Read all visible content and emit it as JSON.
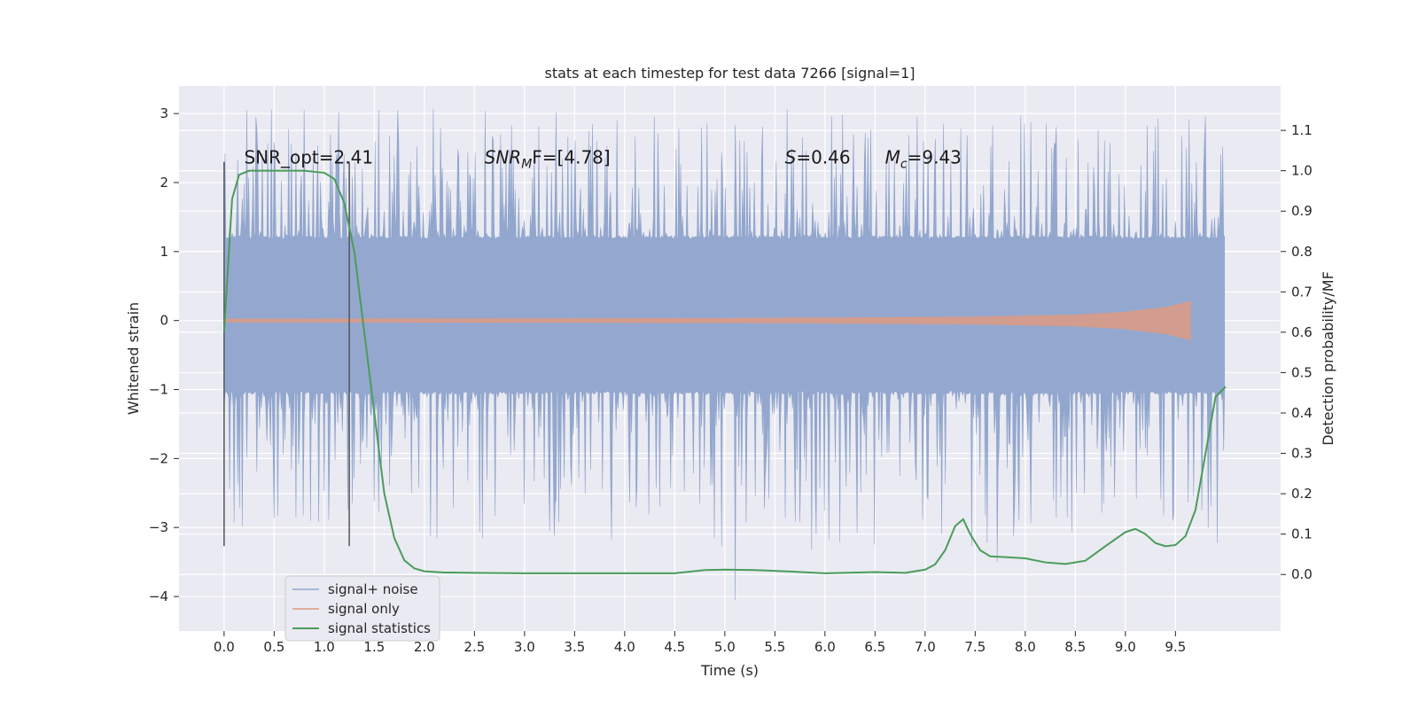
{
  "chart_data": {
    "type": "line",
    "title": "stats at each timestep for test data 7266 [signal=1]",
    "xlabel": "Time (s)",
    "ylabel": "Whitened strain",
    "ylabel_right": "Detection probability/MF",
    "xlim": [
      -0.45,
      10.55
    ],
    "ylim": [
      -4.5,
      3.4
    ],
    "ylim_right": [
      -0.14,
      1.21
    ],
    "x_ticks": [
      "0.0",
      "0.5",
      "1.0",
      "1.5",
      "2.0",
      "2.5",
      "3.0",
      "3.5",
      "4.0",
      "4.5",
      "5.0",
      "5.5",
      "6.0",
      "6.5",
      "7.0",
      "7.5",
      "8.0",
      "8.5",
      "9.0",
      "9.5"
    ],
    "x_tick_values": [
      0.0,
      0.5,
      1.0,
      1.5,
      2.0,
      2.5,
      3.0,
      3.5,
      4.0,
      4.5,
      5.0,
      5.5,
      6.0,
      6.5,
      7.0,
      7.5,
      8.0,
      8.5,
      9.0,
      9.5
    ],
    "y_ticks": [
      "3",
      "2",
      "1",
      "0",
      "−1",
      "−2",
      "−3",
      "−4"
    ],
    "y_tick_values": [
      3,
      2,
      1,
      0,
      -1,
      -2,
      -3,
      -4
    ],
    "y_right_ticks": [
      "1.1",
      "1.0",
      "0.9",
      "0.8",
      "0.7",
      "0.6",
      "0.5",
      "0.4",
      "0.3",
      "0.2",
      "0.1",
      "0.0"
    ],
    "y_right_tick_values": [
      1.1,
      1.0,
      0.9,
      0.8,
      0.7,
      0.6,
      0.5,
      0.4,
      0.3,
      0.2,
      0.1,
      0.0
    ],
    "grid": true,
    "legend_position": "lower-left",
    "annotations": [
      {
        "text": "SNR_opt=2.41"
      },
      {
        "prefix": "SNR",
        "sub": "M",
        "suffix": "F=[4.78]"
      },
      {
        "prefix": "S",
        "sub": "",
        "suffix": "=0.46"
      },
      {
        "prefix": "M",
        "sub": "c",
        "suffix": "=9.43"
      }
    ],
    "vlines": [
      0.0,
      1.25
    ],
    "vline_range": [
      -3.27,
      2.3
    ],
    "series": [
      {
        "name": "signal+ noise",
        "color": "#8fa4cc",
        "x_range": [
          0.0,
          9.99
        ],
        "band_inner": [
          -1.02,
          1.18
        ],
        "spike_upper_max": 3.05,
        "spike_lower_min": -4.05
      },
      {
        "name": "signal only",
        "color": "#dd9a82",
        "x_range": [
          0.0,
          9.65
        ],
        "envelope": [
          [
            0.0,
            0.02
          ],
          [
            5.0,
            0.03
          ],
          [
            7.5,
            0.05
          ],
          [
            8.5,
            0.08
          ],
          [
            9.0,
            0.12
          ],
          [
            9.4,
            0.19
          ],
          [
            9.6,
            0.26
          ],
          [
            9.65,
            0.28
          ]
        ]
      },
      {
        "name": "signal statistics",
        "color": "#4a9c5a",
        "axis": "right",
        "x": [
          0.0,
          0.08,
          0.15,
          0.25,
          0.4,
          0.6,
          0.8,
          1.0,
          1.1,
          1.2,
          1.3,
          1.4,
          1.5,
          1.6,
          1.7,
          1.8,
          1.9,
          2.0,
          2.2,
          2.5,
          3.0,
          3.5,
          4.0,
          4.5,
          4.8,
          5.0,
          5.3,
          5.6,
          6.0,
          6.5,
          6.8,
          7.0,
          7.1,
          7.2,
          7.3,
          7.38,
          7.45,
          7.55,
          7.65,
          7.8,
          8.0,
          8.2,
          8.4,
          8.6,
          8.8,
          9.0,
          9.1,
          9.2,
          9.3,
          9.4,
          9.5,
          9.6,
          9.7,
          9.8,
          9.9,
          10.0
        ],
        "values": [
          0.6,
          0.93,
          0.99,
          1.0,
          1.0,
          1.0,
          1.0,
          0.995,
          0.98,
          0.92,
          0.8,
          0.6,
          0.4,
          0.2,
          0.09,
          0.035,
          0.015,
          0.008,
          0.005,
          0.004,
          0.003,
          0.003,
          0.003,
          0.003,
          0.011,
          0.012,
          0.011,
          0.008,
          0.003,
          0.006,
          0.004,
          0.012,
          0.025,
          0.06,
          0.12,
          0.137,
          0.1,
          0.06,
          0.045,
          0.043,
          0.04,
          0.03,
          0.026,
          0.034,
          0.07,
          0.105,
          0.113,
          0.1,
          0.078,
          0.07,
          0.073,
          0.095,
          0.16,
          0.3,
          0.44,
          0.465
        ]
      }
    ]
  }
}
